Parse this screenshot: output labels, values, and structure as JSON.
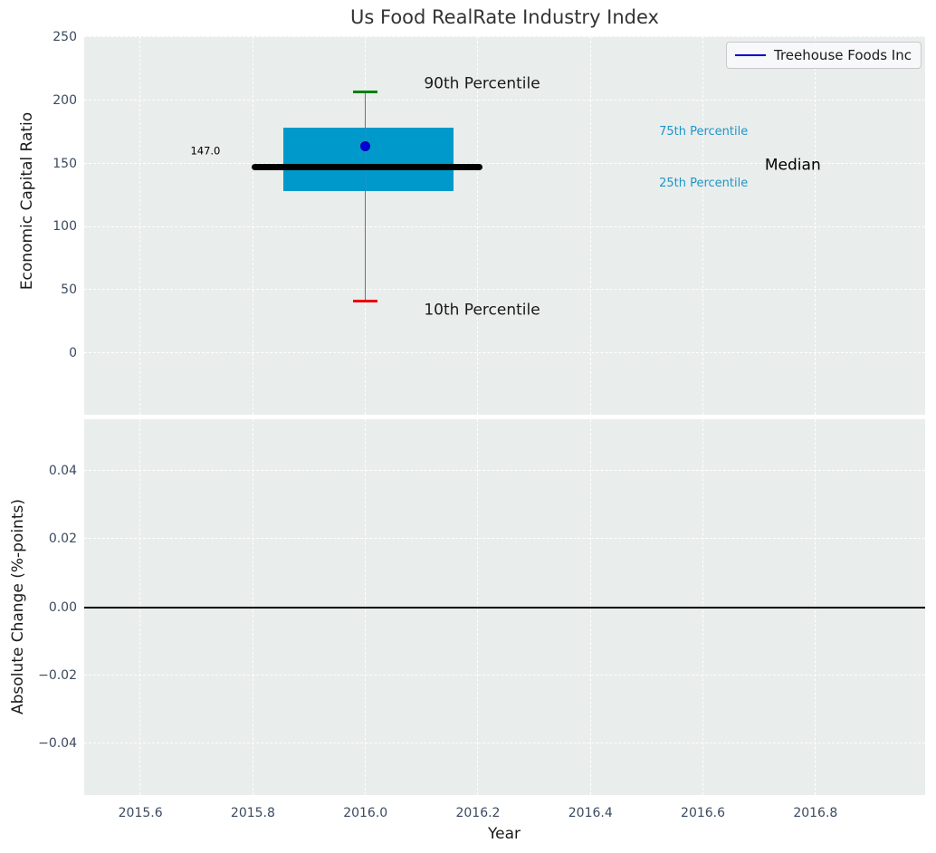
{
  "title": "Us Food RealRate Industry Index",
  "legend": {
    "label": "Treehouse Foods Inc",
    "line_color": "#0000cd"
  },
  "colors": {
    "plot_background": "#e9edec",
    "grid": "#ffffff",
    "tick_label": "#3b4a5f",
    "box_fill": "#0099cc",
    "median_line": "#000000",
    "whisker": "#737373",
    "cap_90th": "#008000",
    "cap_10th": "#e8000b",
    "company_marker": "#0000dd",
    "percentile_label_cyan": "#1e96c8",
    "zero_line": "#000000"
  },
  "chart_data": [
    {
      "type": "boxplot",
      "title": "Us Food RealRate Industry Index",
      "ylabel": "Economic Capital Ratio",
      "xlabel": "Year",
      "grid": true,
      "legend_position": "upper right",
      "xlim": [
        2015.5,
        2016.995
      ],
      "ylim": [
        -48.7,
        250.7
      ],
      "y_ticks": [
        {
          "v": 0,
          "label": "0"
        },
        {
          "v": 50,
          "label": "50"
        },
        {
          "v": 100,
          "label": "100"
        },
        {
          "v": 150,
          "label": "150"
        },
        {
          "v": 200,
          "label": "200"
        },
        {
          "v": 250,
          "label": "250"
        }
      ],
      "x_ticks": [
        {
          "v": 2015.6,
          "label": "2015.6"
        },
        {
          "v": 2015.8,
          "label": "2015.8"
        },
        {
          "v": 2016.0,
          "label": "2016.0"
        },
        {
          "v": 2016.2,
          "label": "2016.2"
        },
        {
          "v": 2016.4,
          "label": "2016.4"
        },
        {
          "v": 2016.6,
          "label": "2016.6"
        },
        {
          "v": 2016.8,
          "label": "2016.8"
        }
      ],
      "box": {
        "x": 2016.0,
        "p10": 41,
        "p25": 128,
        "median": 147.0,
        "p75": 178,
        "p90": 207,
        "company_value": 164,
        "box_left": 2015.854,
        "box_right": 2016.157,
        "median_left": 2015.798,
        "median_right": 2016.208,
        "cap_width": 0.044
      },
      "series": [
        {
          "name": "Treehouse Foods Inc",
          "x": 2016.0,
          "value": 164
        }
      ],
      "annotations": [
        {
          "name": "median-value-label",
          "text": "147.0",
          "x": 2015.742,
          "y": 160,
          "color": "#000000"
        },
        {
          "name": "p90-percentile-label",
          "text": "90th Percentile",
          "x": 2016.104,
          "y": 213,
          "color": "#1a1a1a"
        },
        {
          "name": "p10-percentile-label",
          "text": "10th Percentile",
          "x": 2016.104,
          "y": 34,
          "color": "#1a1a1a"
        },
        {
          "name": "p75-percentile-label",
          "text": "75th Percentile",
          "x": 2016.522,
          "y": 175,
          "color": "#1e96c8"
        },
        {
          "name": "p25-percentile-label",
          "text": "25th Percentile",
          "x": 2016.522,
          "y": 134,
          "color": "#1e96c8"
        },
        {
          "name": "median-text-label",
          "text": "Median",
          "x": 2016.71,
          "y": 148,
          "color": "#000000"
        }
      ]
    },
    {
      "type": "line",
      "ylabel": "Absolute Change (%-points)",
      "xlabel": "Year",
      "grid": true,
      "xlim": [
        2015.5,
        2016.995
      ],
      "ylim": [
        -0.0551,
        0.0551
      ],
      "zero_line": 0.0,
      "series": [],
      "y_ticks": [
        {
          "v": -0.04,
          "label": "−0.04"
        },
        {
          "v": -0.02,
          "label": "−0.02"
        },
        {
          "v": 0,
          "label": "0.00"
        },
        {
          "v": 0.02,
          "label": "0.02"
        },
        {
          "v": 0.04,
          "label": "0.04"
        }
      ],
      "x_ticks": [
        {
          "v": 2015.6,
          "label": "2015.6"
        },
        {
          "v": 2015.8,
          "label": "2015.8"
        },
        {
          "v": 2016.0,
          "label": "2016.0"
        },
        {
          "v": 2016.2,
          "label": "2016.2"
        },
        {
          "v": 2016.4,
          "label": "2016.4"
        },
        {
          "v": 2016.6,
          "label": "2016.6"
        },
        {
          "v": 2016.8,
          "label": "2016.8"
        }
      ]
    }
  ]
}
